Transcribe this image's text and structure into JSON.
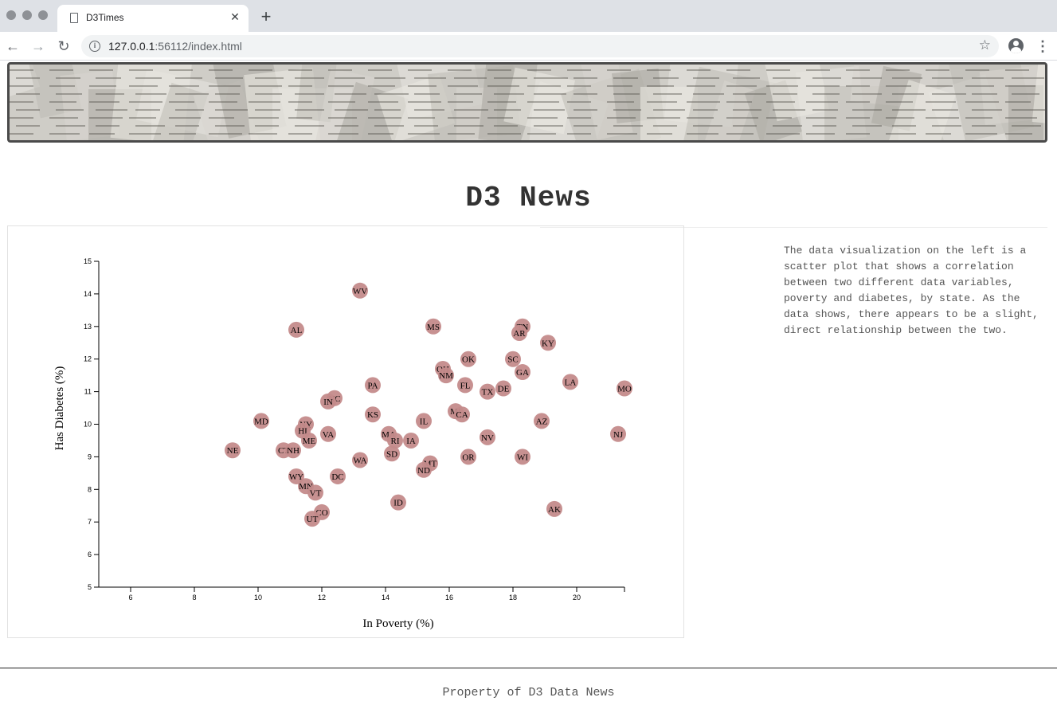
{
  "browser": {
    "tab_title": "D3Times",
    "url_host": "127.0.0.1",
    "url_rest": ":56112/index.html"
  },
  "page": {
    "headline": "D3 News",
    "description": "The data visualization on the left is a scatter plot that shows a correlation between two different data variables, poverty and diabetes, by state. As the data shows, there appears to be a slight, direct relationship between the two.",
    "footer": "Property of D3 Data News"
  },
  "colors": {
    "marker": "#c48b8b",
    "text": "#333333"
  },
  "chart_data": {
    "type": "scatter",
    "title": "",
    "xlabel": "In Poverty (%)",
    "ylabel": "Has Diabetes (%)",
    "xlim": [
      5,
      21.5
    ],
    "ylim": [
      5,
      15
    ],
    "xticks": [
      6,
      8,
      10,
      12,
      14,
      16,
      18,
      20
    ],
    "yticks": [
      5,
      6,
      7,
      8,
      9,
      10,
      11,
      12,
      13,
      14,
      15
    ],
    "grid": false,
    "points": [
      {
        "label": "WV",
        "x": 13.2,
        "y": 14.1
      },
      {
        "label": "AL",
        "x": 11.2,
        "y": 12.9
      },
      {
        "label": "MS",
        "x": 15.5,
        "y": 13.0
      },
      {
        "label": "TN",
        "x": 18.3,
        "y": 13.0
      },
      {
        "label": "AR",
        "x": 18.2,
        "y": 12.8
      },
      {
        "label": "KY",
        "x": 19.1,
        "y": 12.5
      },
      {
        "label": "OK",
        "x": 16.6,
        "y": 12.0
      },
      {
        "label": "SC",
        "x": 18.0,
        "y": 12.0
      },
      {
        "label": "OH",
        "x": 15.8,
        "y": 11.7
      },
      {
        "label": "NM",
        "x": 15.9,
        "y": 11.5
      },
      {
        "label": "GA",
        "x": 18.3,
        "y": 11.6
      },
      {
        "label": "LA",
        "x": 19.8,
        "y": 11.3
      },
      {
        "label": "PA",
        "x": 13.6,
        "y": 11.2
      },
      {
        "label": "FL",
        "x": 16.5,
        "y": 11.2
      },
      {
        "label": "TX",
        "x": 17.2,
        "y": 11.0
      },
      {
        "label": "DE",
        "x": 17.7,
        "y": 11.1
      },
      {
        "label": "MO",
        "x": 21.5,
        "y": 11.1
      },
      {
        "label": "NC",
        "x": 12.4,
        "y": 10.8
      },
      {
        "label": "IN",
        "x": 12.2,
        "y": 10.7
      },
      {
        "label": "MI",
        "x": 16.2,
        "y": 10.4
      },
      {
        "label": "CA",
        "x": 16.4,
        "y": 10.3
      },
      {
        "label": "KS",
        "x": 13.6,
        "y": 10.3
      },
      {
        "label": "IL",
        "x": 15.2,
        "y": 10.1
      },
      {
        "label": "AZ",
        "x": 18.9,
        "y": 10.1
      },
      {
        "label": "MD",
        "x": 10.1,
        "y": 10.1
      },
      {
        "label": "NY",
        "x": 11.5,
        "y": 10.0
      },
      {
        "label": "HI",
        "x": 11.4,
        "y": 9.8
      },
      {
        "label": "VA",
        "x": 12.2,
        "y": 9.7
      },
      {
        "label": "MA",
        "x": 14.1,
        "y": 9.7
      },
      {
        "label": "NJ",
        "x": 21.3,
        "y": 9.7
      },
      {
        "label": "ME",
        "x": 11.6,
        "y": 9.5
      },
      {
        "label": "RI",
        "x": 14.3,
        "y": 9.5
      },
      {
        "label": "IA",
        "x": 14.8,
        "y": 9.5
      },
      {
        "label": "NV",
        "x": 17.2,
        "y": 9.6
      },
      {
        "label": "NE",
        "x": 9.2,
        "y": 9.2
      },
      {
        "label": "CT",
        "x": 10.8,
        "y": 9.2
      },
      {
        "label": "NH",
        "x": 11.1,
        "y": 9.2
      },
      {
        "label": "SD",
        "x": 14.2,
        "y": 9.1
      },
      {
        "label": "WA",
        "x": 13.2,
        "y": 8.9
      },
      {
        "label": "OR",
        "x": 16.6,
        "y": 9.0
      },
      {
        "label": "WI",
        "x": 18.3,
        "y": 9.0
      },
      {
        "label": "MT",
        "x": 15.4,
        "y": 8.8
      },
      {
        "label": "ND",
        "x": 15.2,
        "y": 8.6
      },
      {
        "label": "WY",
        "x": 11.2,
        "y": 8.4
      },
      {
        "label": "DC",
        "x": 12.5,
        "y": 8.4
      },
      {
        "label": "MN",
        "x": 11.5,
        "y": 8.1
      },
      {
        "label": "VT",
        "x": 11.8,
        "y": 7.9
      },
      {
        "label": "ID",
        "x": 14.4,
        "y": 7.6
      },
      {
        "label": "AK",
        "x": 19.3,
        "y": 7.4
      },
      {
        "label": "CO",
        "x": 12.0,
        "y": 7.3
      },
      {
        "label": "UT",
        "x": 11.7,
        "y": 7.1
      }
    ]
  }
}
